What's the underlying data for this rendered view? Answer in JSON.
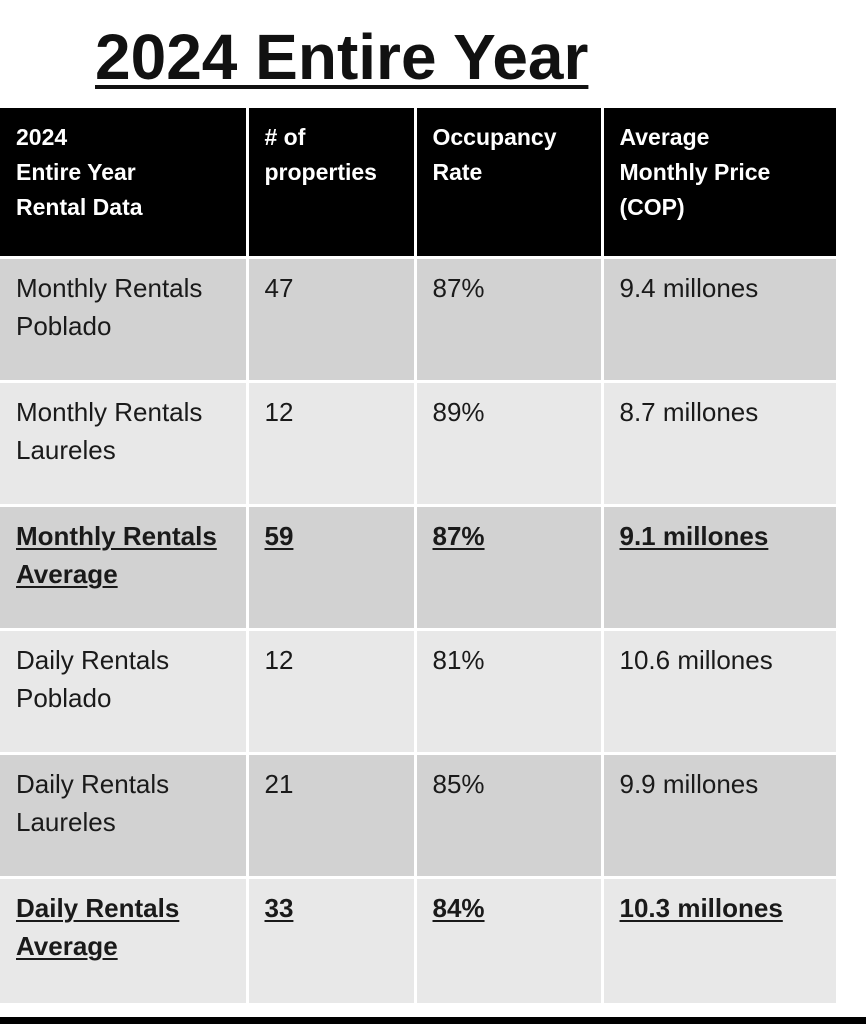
{
  "title": "2024 Entire Year",
  "table": {
    "headers": [
      "2024\nEntire Year\nRental Data",
      "# of\nproperties",
      "Occupancy\nRate",
      "Average\nMonthly Price\n(COP)"
    ],
    "rows": [
      {
        "label": "Monthly Rentals Poblado",
        "properties": "47",
        "occupancy": "87%",
        "price": "9.4 millones",
        "summary": false
      },
      {
        "label": "Monthly Rentals Laureles",
        "properties": "12",
        "occupancy": "89%",
        "price": "8.7 millones",
        "summary": false
      },
      {
        "label": "Monthly Rentals Average",
        "properties": "59",
        "occupancy": "87%",
        "price": "9.1 millones",
        "summary": true
      },
      {
        "label": "Daily Rentals Poblado",
        "properties": "12",
        "occupancy": "81%",
        "price": "10.6 millones",
        "summary": false
      },
      {
        "label": "Daily Rentals Laureles",
        "properties": "21",
        "occupancy": "85%",
        "price": "9.9 millones",
        "summary": false
      },
      {
        "label": "Daily Rentals Average",
        "properties": "33",
        "occupancy": "84%",
        "price": "10.3 millones",
        "summary": true
      }
    ]
  },
  "colors": {
    "header_bg": "#000000",
    "header_text": "#ffffff",
    "row_dark": "#d2d2d2",
    "row_light": "#e8e8e8"
  }
}
